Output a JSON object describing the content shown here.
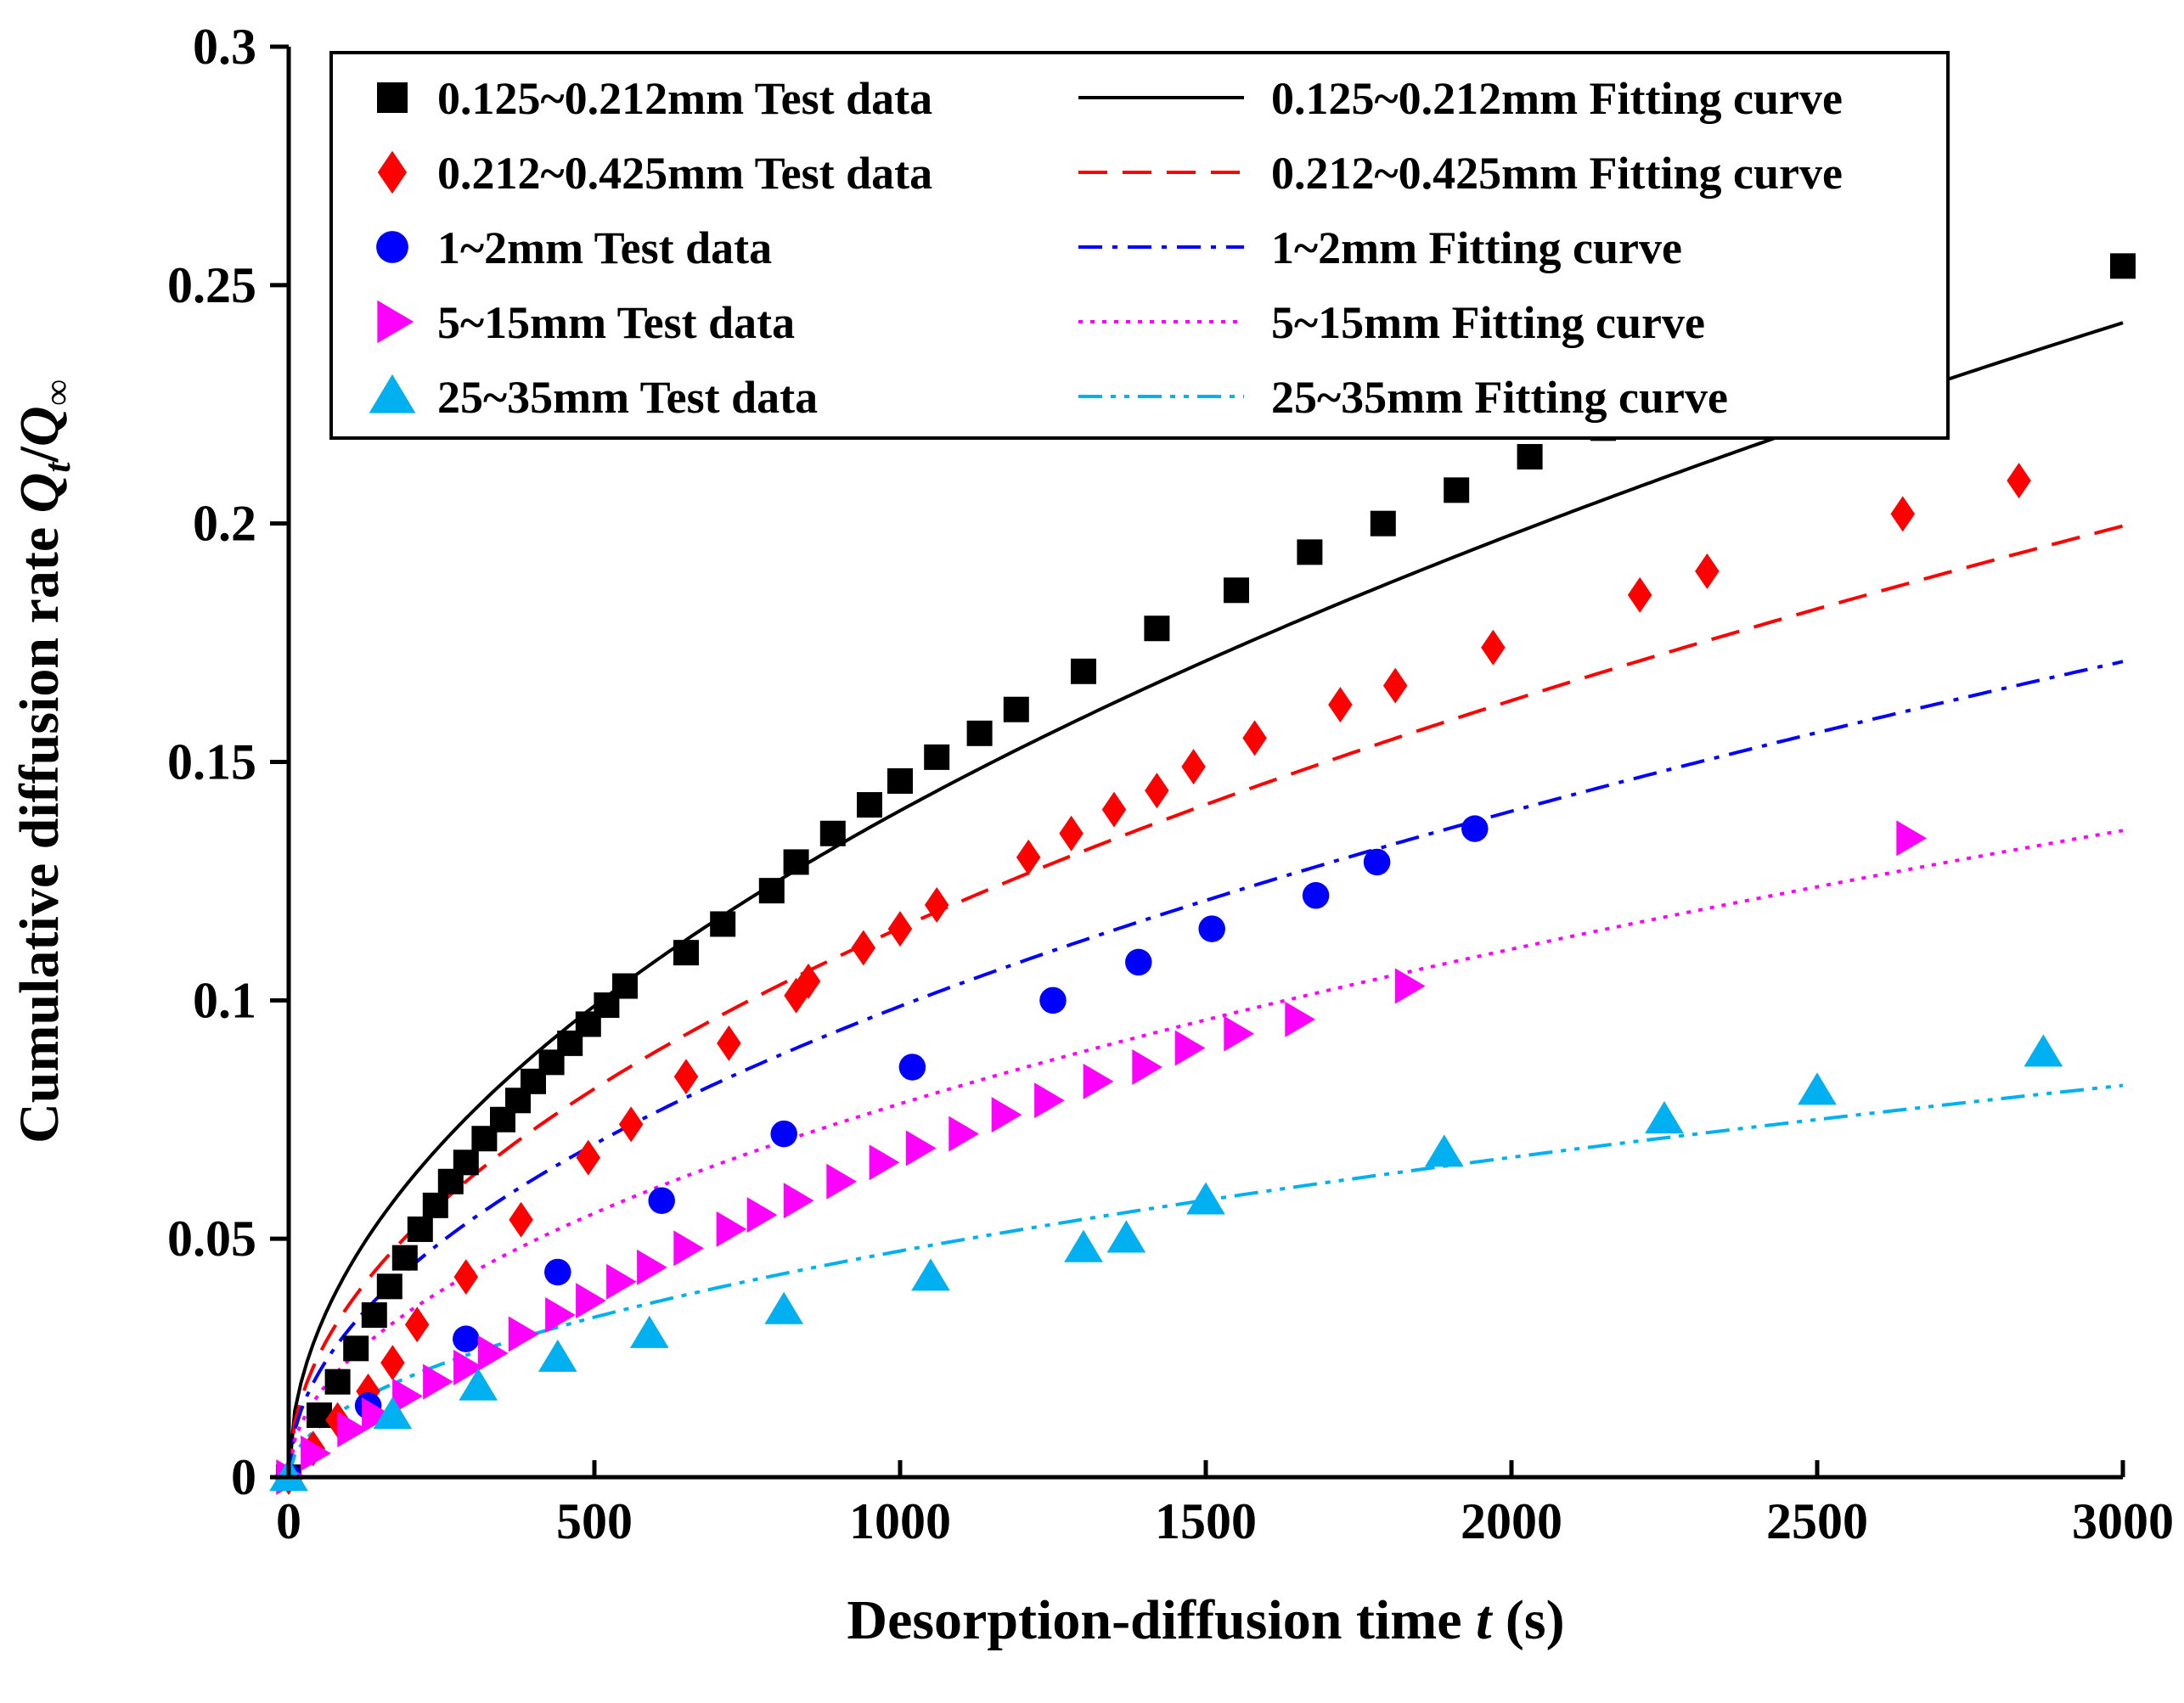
{
  "chart_data": {
    "type": "scatter",
    "title": "",
    "xlabel": {
      "main": "Desorption-diffusion time ",
      "var": "t",
      "unit": " (s)"
    },
    "ylabel": {
      "main": "Cumulative diffusion rate ",
      "q1": "Q",
      "s1": "t",
      "slash": "/",
      "q2": "Q",
      "s2": "∞"
    },
    "xlim": [
      0,
      3000
    ],
    "ylim": [
      0,
      0.3
    ],
    "xticks": [
      0,
      500,
      1000,
      1500,
      2000,
      2500,
      3000
    ],
    "xtick_labels": [
      "0",
      "500",
      "1000",
      "1500",
      "2000",
      "2500",
      "3000"
    ],
    "yticks": [
      0,
      0.05,
      0.1,
      0.15,
      0.2,
      0.25,
      0.3
    ],
    "ytick_labels": [
      "0",
      "0.05",
      "0.1",
      "0.15",
      "0.2",
      "0.25",
      "0.3"
    ],
    "legend_position": "top-left",
    "series": [
      {
        "name": "0.125~0.212mm Test data",
        "fit_name": "0.125~0.212mm Fitting curve",
        "marker": "square",
        "color": "#000000",
        "line_style": "solid",
        "fit_k": 0.00442,
        "points": [
          [
            0,
            0
          ],
          [
            50,
            0.013
          ],
          [
            80,
            0.02
          ],
          [
            110,
            0.027
          ],
          [
            140,
            0.034
          ],
          [
            165,
            0.04
          ],
          [
            190,
            0.046
          ],
          [
            215,
            0.052
          ],
          [
            240,
            0.057
          ],
          [
            265,
            0.062
          ],
          [
            290,
            0.066
          ],
          [
            320,
            0.071
          ],
          [
            350,
            0.075
          ],
          [
            375,
            0.079
          ],
          [
            400,
            0.083
          ],
          [
            430,
            0.087
          ],
          [
            460,
            0.091
          ],
          [
            490,
            0.095
          ],
          [
            520,
            0.099
          ],
          [
            550,
            0.103
          ],
          [
            650,
            0.11
          ],
          [
            710,
            0.116
          ],
          [
            790,
            0.123
          ],
          [
            830,
            0.129
          ],
          [
            890,
            0.135
          ],
          [
            950,
            0.141
          ],
          [
            1000,
            0.146
          ],
          [
            1060,
            0.151
          ],
          [
            1130,
            0.156
          ],
          [
            1190,
            0.161
          ],
          [
            1300,
            0.169
          ],
          [
            1420,
            0.178
          ],
          [
            1550,
            0.186
          ],
          [
            1670,
            0.194
          ],
          [
            1790,
            0.2
          ],
          [
            1910,
            0.207
          ],
          [
            2030,
            0.214
          ],
          [
            2150,
            0.22
          ],
          [
            3000,
            0.254
          ]
        ]
      },
      {
        "name": "0.212~0.425mm Test data",
        "fit_name": "0.212~0.425mm Fitting curve",
        "marker": "diamond",
        "color": "#ff0000",
        "line_style": "dashed",
        "fit_k": 0.003642,
        "points": [
          [
            0,
            0
          ],
          [
            40,
            0.006
          ],
          [
            80,
            0.012
          ],
          [
            130,
            0.018
          ],
          [
            170,
            0.024
          ],
          [
            210,
            0.032
          ],
          [
            290,
            0.042
          ],
          [
            380,
            0.054
          ],
          [
            490,
            0.067
          ],
          [
            560,
            0.074
          ],
          [
            650,
            0.084
          ],
          [
            720,
            0.091
          ],
          [
            830,
            0.101
          ],
          [
            850,
            0.104
          ],
          [
            940,
            0.111
          ],
          [
            1000,
            0.115
          ],
          [
            1060,
            0.12
          ],
          [
            1210,
            0.13
          ],
          [
            1280,
            0.135
          ],
          [
            1350,
            0.14
          ],
          [
            1420,
            0.144
          ],
          [
            1480,
            0.149
          ],
          [
            1580,
            0.155
          ],
          [
            1720,
            0.162
          ],
          [
            1810,
            0.166
          ],
          [
            1970,
            0.174
          ],
          [
            2210,
            0.185
          ],
          [
            2320,
            0.19
          ],
          [
            2640,
            0.202
          ],
          [
            2830,
            0.209
          ]
        ]
      },
      {
        "name": "1~2mm Test data",
        "fit_name": "1~2mm Fitting curve",
        "marker": "circle",
        "color": "#0000ff",
        "line_style": "dashdot",
        "fit_k": 0.003123,
        "points": [
          [
            0,
            0
          ],
          [
            130,
            0.015
          ],
          [
            290,
            0.029
          ],
          [
            440,
            0.043
          ],
          [
            610,
            0.058
          ],
          [
            810,
            0.072
          ],
          [
            1020,
            0.086
          ],
          [
            1250,
            0.1
          ],
          [
            1390,
            0.108
          ],
          [
            1510,
            0.115
          ],
          [
            1680,
            0.122
          ],
          [
            1780,
            0.129
          ],
          [
            1940,
            0.136
          ]
        ]
      },
      {
        "name": "5~15mm Test data",
        "fit_name": "5~15mm Fitting curve",
        "marker": "triangle-right",
        "color": "#ff00ff",
        "line_style": "dotted",
        "fit_k": 0.002476,
        "points": [
          [
            0,
            0
          ],
          [
            40,
            0.005
          ],
          [
            100,
            0.01
          ],
          [
            140,
            0.013
          ],
          [
            190,
            0.017
          ],
          [
            240,
            0.02
          ],
          [
            290,
            0.023
          ],
          [
            330,
            0.026
          ],
          [
            380,
            0.03
          ],
          [
            440,
            0.034
          ],
          [
            490,
            0.037
          ],
          [
            540,
            0.041
          ],
          [
            590,
            0.044
          ],
          [
            650,
            0.048
          ],
          [
            720,
            0.052
          ],
          [
            770,
            0.055
          ],
          [
            830,
            0.058
          ],
          [
            900,
            0.062
          ],
          [
            970,
            0.066
          ],
          [
            1030,
            0.069
          ],
          [
            1100,
            0.072
          ],
          [
            1170,
            0.076
          ],
          [
            1240,
            0.079
          ],
          [
            1320,
            0.083
          ],
          [
            1400,
            0.086
          ],
          [
            1470,
            0.09
          ],
          [
            1550,
            0.093
          ],
          [
            1650,
            0.096
          ],
          [
            1830,
            0.103
          ],
          [
            2650,
            0.134
          ]
        ]
      },
      {
        "name": "25~35mm Test data",
        "fit_name": "25~35mm Fitting curve",
        "marker": "triangle-up",
        "color": "#00b0f0",
        "line_style": "dashdotdot",
        "fit_k": 0.0015,
        "points": [
          [
            0,
            0
          ],
          [
            170,
            0.013
          ],
          [
            310,
            0.019
          ],
          [
            440,
            0.025
          ],
          [
            590,
            0.03
          ],
          [
            810,
            0.035
          ],
          [
            1050,
            0.042
          ],
          [
            1300,
            0.048
          ],
          [
            1370,
            0.05
          ],
          [
            1500,
            0.058
          ],
          [
            1890,
            0.068
          ],
          [
            2250,
            0.075
          ],
          [
            2500,
            0.081
          ],
          [
            2870,
            0.089
          ]
        ]
      }
    ]
  }
}
